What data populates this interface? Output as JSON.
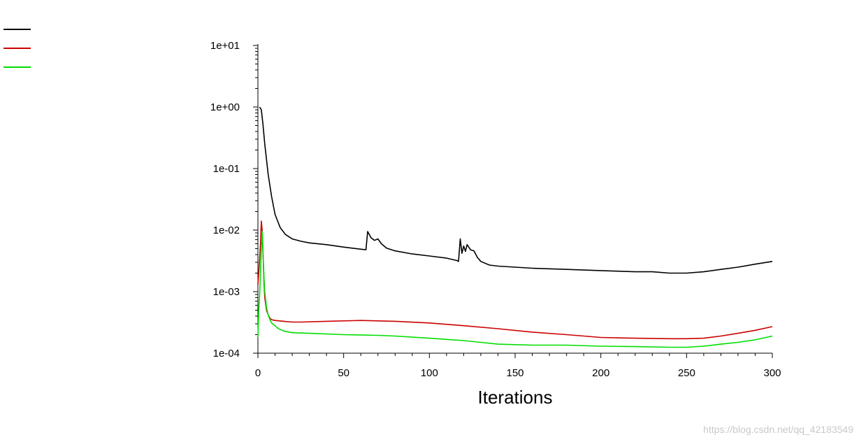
{
  "chart_data": {
    "type": "line",
    "title": "",
    "xlabel": "Iterations",
    "ylabel": "",
    "xlim": [
      0,
      300
    ],
    "ylim": [
      0.0001,
      10
    ],
    "y_scale": "log",
    "x_ticks": [
      "0",
      "50",
      "100",
      "150",
      "200",
      "250",
      "300"
    ],
    "y_ticks": [
      "1e+01",
      "1e+00",
      "1e-01",
      "1e-02",
      "1e-03",
      "1e-04"
    ],
    "legend_position": "top-left",
    "series": [
      {
        "color": "#000000",
        "x": [
          1,
          2,
          3,
          4,
          5,
          6,
          8,
          10,
          13,
          16,
          20,
          25,
          30,
          40,
          50,
          60,
          63,
          64,
          66,
          68,
          70,
          72,
          75,
          80,
          90,
          100,
          110,
          116,
          117,
          118,
          119,
          120,
          121,
          122,
          124,
          126,
          128,
          130,
          135,
          140,
          150,
          160,
          180,
          200,
          220,
          230,
          240,
          250,
          260,
          270,
          280,
          290,
          300
        ],
        "y": [
          1.0,
          0.9,
          0.5,
          0.25,
          0.14,
          0.08,
          0.035,
          0.018,
          0.011,
          0.0085,
          0.0072,
          0.0066,
          0.0062,
          0.0058,
          0.0053,
          0.0049,
          0.0048,
          0.0095,
          0.0075,
          0.0068,
          0.0072,
          0.006,
          0.0051,
          0.0046,
          0.0041,
          0.0038,
          0.0035,
          0.0032,
          0.0031,
          0.0072,
          0.0042,
          0.0055,
          0.0045,
          0.0058,
          0.0048,
          0.0046,
          0.0036,
          0.0031,
          0.0027,
          0.0026,
          0.0025,
          0.0024,
          0.0023,
          0.0022,
          0.0021,
          0.0021,
          0.002,
          0.002,
          0.0021,
          0.0023,
          0.0025,
          0.0028,
          0.0031
        ]
      },
      {
        "color": "#cc0000",
        "x": [
          0,
          0.5,
          1,
          1.5,
          2,
          2.5,
          3,
          3.5,
          4,
          5,
          6,
          7,
          8,
          10,
          15,
          20,
          25,
          40,
          60,
          80,
          100,
          120,
          140,
          160,
          180,
          200,
          220,
          240,
          250,
          260,
          270,
          280,
          290,
          300
        ],
        "y": [
          0.0013,
          0.002,
          0.0035,
          0.006,
          0.014,
          0.01,
          0.004,
          0.0015,
          0.0008,
          0.0005,
          0.00042,
          0.00037,
          0.00035,
          0.00034,
          0.00033,
          0.00032,
          0.00032,
          0.00033,
          0.00034,
          0.00033,
          0.00031,
          0.00028,
          0.00025,
          0.00022,
          0.0002,
          0.00018,
          0.000175,
          0.000172,
          0.000172,
          0.000175,
          0.00019,
          0.00021,
          0.000235,
          0.00027
        ]
      },
      {
        "color": "#00dd00",
        "x": [
          0,
          0.5,
          1,
          1.5,
          2,
          2.5,
          3,
          3.5,
          4,
          5,
          6,
          7,
          8,
          10,
          12,
          15,
          20,
          30,
          50,
          70,
          80,
          100,
          120,
          130,
          140,
          160,
          180,
          200,
          220,
          240,
          250,
          260,
          270,
          280,
          290,
          300
        ],
        "y": [
          0.00018,
          0.0005,
          0.0009,
          0.002,
          0.005,
          0.0095,
          0.004,
          0.0018,
          0.001,
          0.00055,
          0.00042,
          0.00035,
          0.00031,
          0.00028,
          0.00025,
          0.00023,
          0.000215,
          0.00021,
          0.0002,
          0.000195,
          0.00019,
          0.000175,
          0.00016,
          0.00015,
          0.00014,
          0.000135,
          0.000135,
          0.00013,
          0.000128,
          0.000125,
          0.000125,
          0.00013,
          0.00014,
          0.00015,
          0.000165,
          0.00019
        ]
      }
    ]
  },
  "watermark": "https://blog.csdn.net/qq_42183549"
}
